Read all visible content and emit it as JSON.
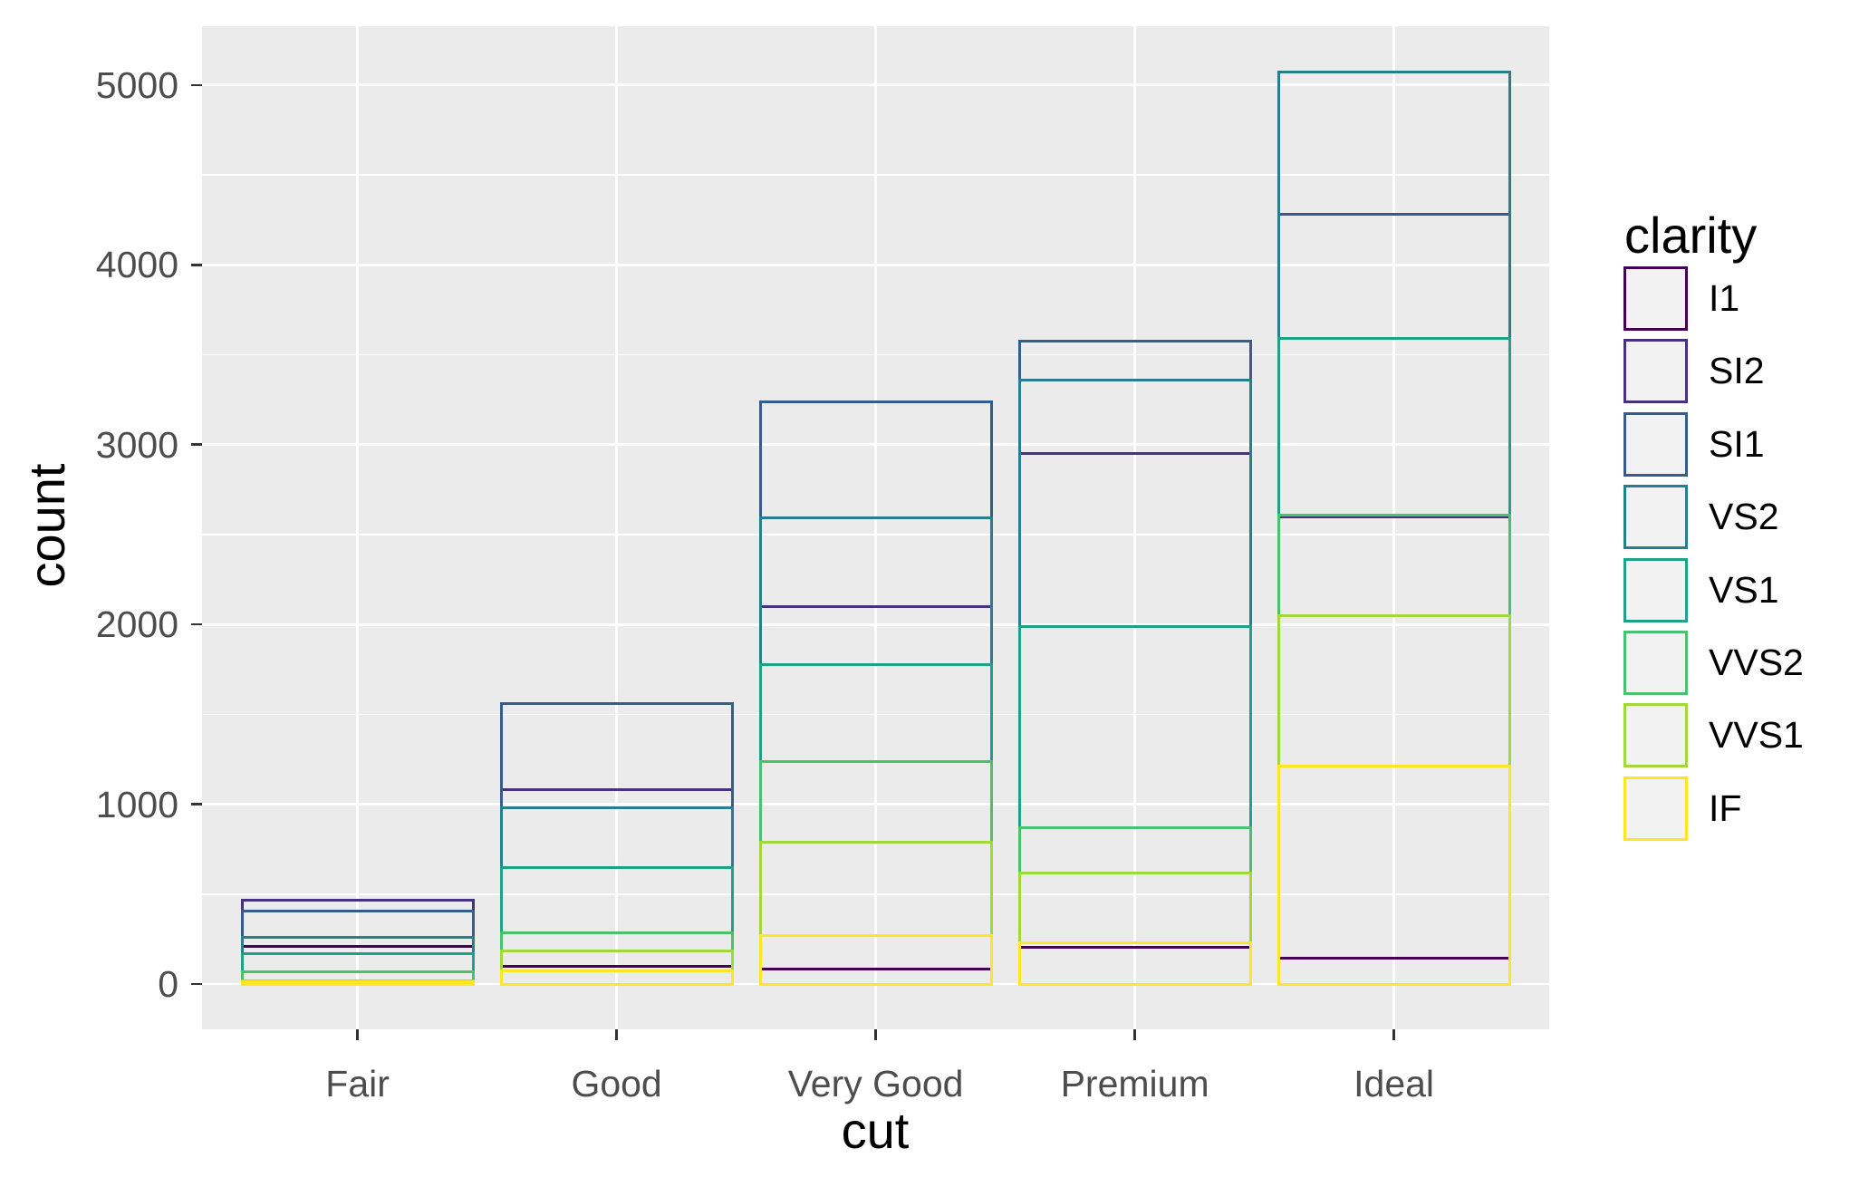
{
  "style": {
    "background": "#FFFFFF",
    "panel_background": "#EBEBEB",
    "grid_color": "#FFFFFF",
    "tick_color": "#333333",
    "tick_label_color": "#4D4D4D",
    "title_color": "#000000",
    "legend_key_fill": "#F2F2F2"
  },
  "chart_data": {
    "type": "bar",
    "position": "identity",
    "note": "outlined unfilled bars, all starting at 0 and overlapping",
    "title": "",
    "xlabel": "cut",
    "ylabel": "count",
    "categories": [
      "Fair",
      "Good",
      "Very Good",
      "Premium",
      "Ideal"
    ],
    "series": [
      {
        "name": "I1",
        "color": "#440154",
        "values": [
          210,
          96,
          84,
          205,
          146
        ]
      },
      {
        "name": "SI2",
        "color": "#46327E",
        "values": [
          466,
          1081,
          2100,
          2949,
          2598
        ]
      },
      {
        "name": "SI1",
        "color": "#365C8D",
        "values": [
          408,
          1560,
          3240,
          3575,
          4282
        ]
      },
      {
        "name": "VS2",
        "color": "#277F8E",
        "values": [
          261,
          978,
          2591,
          3357,
          5071
        ]
      },
      {
        "name": "VS1",
        "color": "#1FA187",
        "values": [
          170,
          648,
          1775,
          1989,
          3589
        ]
      },
      {
        "name": "VVS2",
        "color": "#4AC16D",
        "values": [
          69,
          286,
          1235,
          870,
          2606
        ]
      },
      {
        "name": "VVS1",
        "color": "#9FDA3A",
        "values": [
          17,
          186,
          789,
          616,
          2047
        ]
      },
      {
        "name": "IF",
        "color": "#FDE725",
        "values": [
          9,
          71,
          268,
          230,
          1212
        ]
      }
    ],
    "y_ticks": [
      0,
      1000,
      2000,
      3000,
      4000,
      5000
    ],
    "y_minor_ticks": [
      500,
      1500,
      2500,
      3500,
      4500
    ],
    "ylim": [
      -252,
      5327
    ],
    "grid": true,
    "legend": {
      "title": "clarity",
      "position": "right",
      "entries": [
        "I1",
        "SI2",
        "SI1",
        "VS2",
        "VS1",
        "VVS2",
        "VVS1",
        "IF"
      ]
    }
  }
}
